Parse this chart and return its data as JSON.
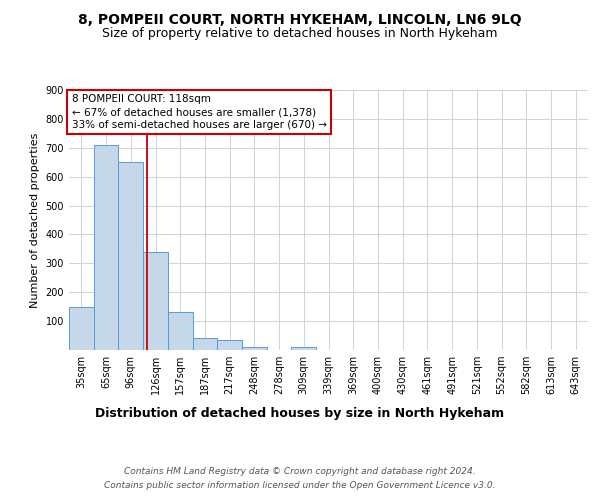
{
  "title": "8, POMPEII COURT, NORTH HYKEHAM, LINCOLN, LN6 9LQ",
  "subtitle": "Size of property relative to detached houses in North Hykeham",
  "xlabel": "Distribution of detached houses by size in North Hykeham",
  "ylabel": "Number of detached properties",
  "bar_labels": [
    "35sqm",
    "65sqm",
    "96sqm",
    "126sqm",
    "157sqm",
    "187sqm",
    "217sqm",
    "248sqm",
    "278sqm",
    "309sqm",
    "339sqm",
    "369sqm",
    "400sqm",
    "430sqm",
    "461sqm",
    "491sqm",
    "521sqm",
    "552sqm",
    "582sqm",
    "613sqm",
    "643sqm"
  ],
  "bar_values": [
    150,
    710,
    650,
    340,
    130,
    42,
    35,
    12,
    0,
    10,
    0,
    0,
    0,
    0,
    0,
    0,
    0,
    0,
    0,
    0,
    0
  ],
  "bar_color": "#c5d8ea",
  "bar_edge_color": "#5b9bd5",
  "red_line_x": 2.67,
  "annotation_line1": "8 POMPEII COURT: 118sqm",
  "annotation_line2": "← 67% of detached houses are smaller (1,378)",
  "annotation_line3": "33% of semi-detached houses are larger (670) →",
  "annotation_box_color": "#ffffff",
  "annotation_box_edge": "#cc0000",
  "ylim": [
    0,
    900
  ],
  "yticks": [
    0,
    100,
    200,
    300,
    400,
    500,
    600,
    700,
    800,
    900
  ],
  "footer_line1": "Contains HM Land Registry data © Crown copyright and database right 2024.",
  "footer_line2": "Contains public sector information licensed under the Open Government Licence v3.0.",
  "background_color": "#ffffff",
  "grid_color": "#c8d4e0",
  "title_fontsize": 10,
  "subtitle_fontsize": 9,
  "ylabel_fontsize": 8,
  "xlabel_fontsize": 9,
  "tick_fontsize": 7,
  "annotation_fontsize": 7.5,
  "footer_fontsize": 6.5
}
